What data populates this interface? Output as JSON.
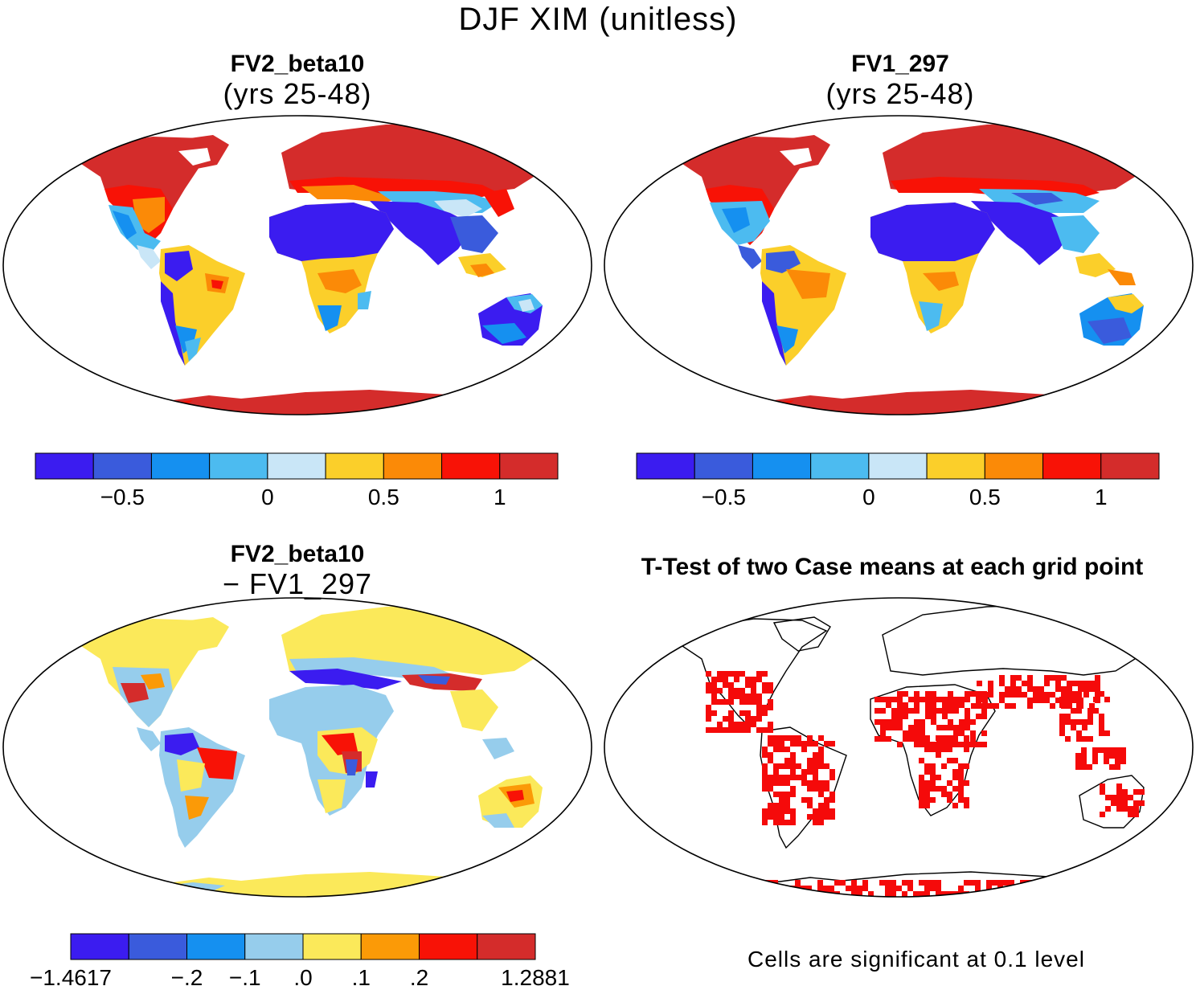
{
  "figure": {
    "title": "DJF XIM (unitless)"
  },
  "panels": [
    {
      "id": "fv2",
      "title": "FV2_beta10",
      "subtitle": "(yrs 25-48)"
    },
    {
      "id": "fv1",
      "title": "FV1_297",
      "subtitle": "(yrs 25-48)"
    },
    {
      "id": "diff",
      "title": "FV2_beta10",
      "subtitle": "− FV1_297"
    },
    {
      "id": "ttest",
      "title": "T-Test of two Case means at each grid point",
      "subtitle": ""
    }
  ],
  "colorbars": [
    {
      "panel": "fv2",
      "colors": [
        "#3b1cf0",
        "#3a5bdc",
        "#1590f0",
        "#4cbbf0",
        "#c9e6f7",
        "#fbcf2a",
        "#fb8a07",
        "#f81206",
        "#d42c2b"
      ],
      "tick_labels": [
        "−0.5",
        "0",
        "0.5",
        "1"
      ]
    },
    {
      "panel": "fv1",
      "colors": [
        "#3b1cf0",
        "#3a5bdc",
        "#1590f0",
        "#4cbbf0",
        "#c9e6f7",
        "#fbcf2a",
        "#fb8a07",
        "#f81206",
        "#d42c2b"
      ],
      "tick_labels": [
        "−0.5",
        "0",
        "0.5",
        "1"
      ]
    },
    {
      "panel": "diff",
      "colors": [
        "#3b1cf0",
        "#3a5bdc",
        "#1590f0",
        "#96cdec",
        "#fbe95a",
        "#fb9a07",
        "#f81206",
        "#d42c2b"
      ],
      "tick_labels": [
        "−1.4617",
        "−.2",
        "−.1",
        ".0",
        ".1",
        ".2",
        "1.2881"
      ]
    }
  ],
  "ttest": {
    "significant_color": "#f50a0a",
    "note": "Cells are significant at 0.1 level"
  }
}
